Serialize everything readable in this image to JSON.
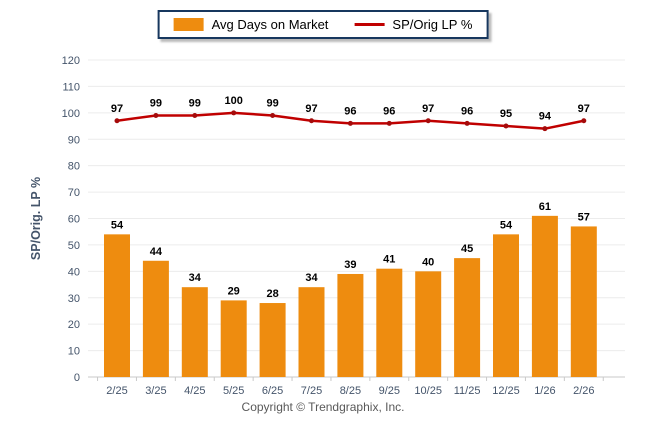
{
  "legend": {
    "items": [
      {
        "label": "Avg Days on Market",
        "type": "bar",
        "color": "#EE8C0F"
      },
      {
        "label": "SP/Orig LP %",
        "type": "line",
        "color": "#C00000"
      }
    ]
  },
  "chart_data": {
    "type": "bar+line",
    "categories": [
      "2/25",
      "3/25",
      "4/25",
      "5/25",
      "6/25",
      "7/25",
      "8/25",
      "9/25",
      "10/25",
      "11/25",
      "12/25",
      "1/26",
      "2/26"
    ],
    "series": [
      {
        "name": "Avg Days on Market",
        "type": "bar",
        "color": "#EE8C0F",
        "values": [
          54,
          44,
          34,
          29,
          28,
          34,
          39,
          41,
          40,
          45,
          54,
          61,
          57
        ]
      },
      {
        "name": "SP/Orig LP %",
        "type": "line",
        "color": "#C00000",
        "marker_color": "#A50B0B",
        "values": [
          97,
          99,
          99,
          100,
          99,
          97,
          96,
          96,
          97,
          96,
          95,
          94,
          97
        ]
      }
    ],
    "title": "",
    "xlabel": "",
    "ylabel": "SP/Orig. LP %",
    "ylim": [
      0,
      120
    ],
    "ytick_step": 10,
    "grid": true,
    "legend_position": "top-center",
    "colors": {
      "gridline": "#ECECEC",
      "axis_line": "#C9C9C9",
      "tick_label": "#44546A",
      "data_label": "#000000"
    }
  },
  "footer": {
    "copyright": "Copyright © Trendgraphix, Inc."
  }
}
